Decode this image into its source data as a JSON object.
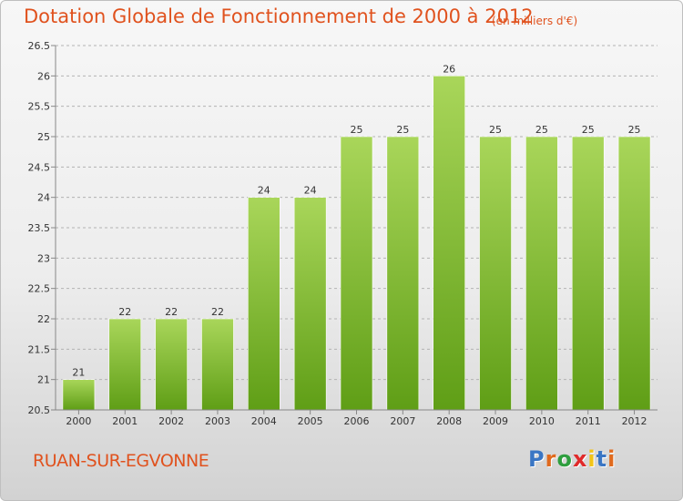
{
  "header": {
    "title": "Dotation Globale de Fonctionnement de 2000 à 2012",
    "subtitle": "(en milliers d'€)"
  },
  "footer": {
    "city": "RUAN-SUR-EGVONNE",
    "logo": "Proxiti",
    "logo_colors": [
      "#3a76c4",
      "#e06a1e",
      "#2e9e3e",
      "#e02a2a",
      "#f2c417",
      "#3a76c4",
      "#e06a1e"
    ]
  },
  "colors": {
    "bar_light": "#a9d65a",
    "bar_dark": "#5f9e16",
    "grid": "#b3b3b3",
    "axis": "#888888",
    "text": "#333333"
  },
  "chart_data": {
    "type": "bar",
    "categories": [
      "2000",
      "2001",
      "2002",
      "2003",
      "2004",
      "2005",
      "2006",
      "2007",
      "2008",
      "2009",
      "2010",
      "2011",
      "2012"
    ],
    "values": [
      21,
      22,
      22,
      22,
      24,
      24,
      25,
      25,
      26,
      25,
      25,
      25,
      25
    ],
    "title": "Dotation Globale de Fonctionnement de 2000 à 2012",
    "subtitle": "(en milliers d'€)",
    "xlabel": "",
    "ylabel": "",
    "ylim": [
      20.5,
      26.5
    ],
    "yticks": [
      "20.5",
      "21",
      "21.5",
      "22",
      "22.5",
      "23",
      "23.5",
      "24",
      "24.5",
      "25",
      "25.5",
      "26",
      "26.5"
    ],
    "grid": true,
    "grid_style": "dashed horizontal",
    "legend": "none"
  }
}
